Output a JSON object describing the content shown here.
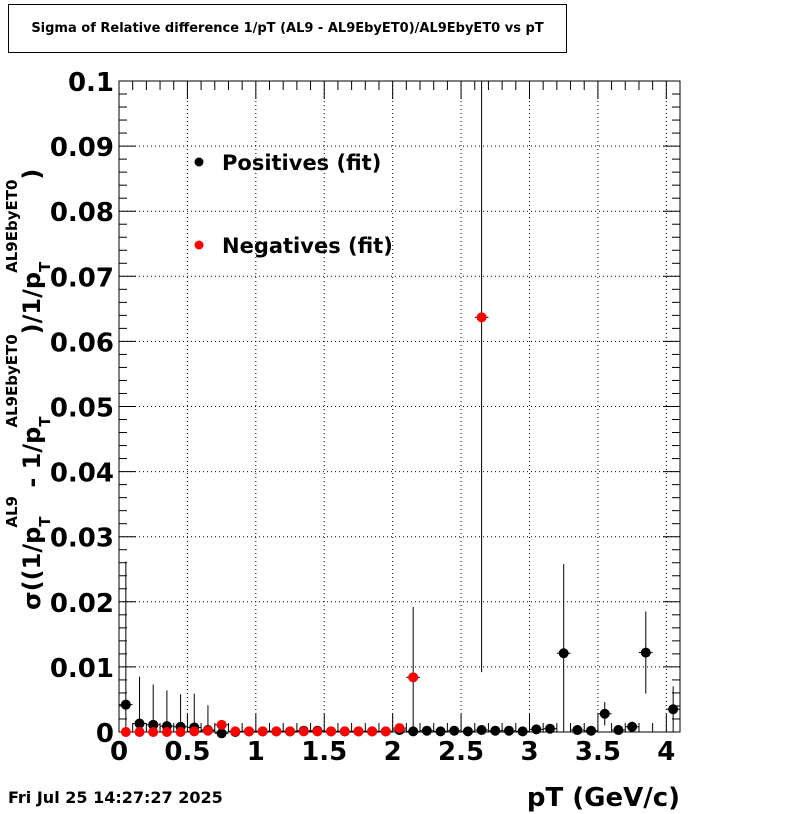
{
  "chart_data": {
    "type": "scatter",
    "title": "Sigma of Relative difference 1/pT (AL9 - AL9EbyET0)/AL9EbyET0 vs pT",
    "xlabel": "pT (GeV/c)",
    "ylabel": {
      "sigma": "σ((1/p",
      "t1": "T",
      "sup1": "AL9",
      "minus": " - 1/p",
      "t2": "T",
      "sup2": "AL9EbyET0",
      "div": ")/1/p",
      "t3": "T",
      "sup3": "AL9EbyET0",
      "close": ")"
    },
    "xlim": [
      0,
      4.1
    ],
    "ylim": [
      0,
      0.1
    ],
    "x_ticks": [
      {
        "v": 0,
        "label": "0"
      },
      {
        "v": 0.5,
        "label": "0.5"
      },
      {
        "v": 1,
        "label": "1"
      },
      {
        "v": 1.5,
        "label": "1.5"
      },
      {
        "v": 2,
        "label": "2"
      },
      {
        "v": 2.5,
        "label": "2.5"
      },
      {
        "v": 3,
        "label": "3"
      },
      {
        "v": 3.5,
        "label": "3.5"
      },
      {
        "v": 4,
        "label": "4"
      }
    ],
    "y_ticks": [
      {
        "v": 0,
        "label": "0"
      },
      {
        "v": 0.01,
        "label": "0.01"
      },
      {
        "v": 0.02,
        "label": "0.02"
      },
      {
        "v": 0.03,
        "label": "0.03"
      },
      {
        "v": 0.04,
        "label": "0.04"
      },
      {
        "v": 0.05,
        "label": "0.05"
      },
      {
        "v": 0.06,
        "label": "0.06"
      },
      {
        "v": 0.07,
        "label": "0.07"
      },
      {
        "v": 0.08,
        "label": "0.08"
      },
      {
        "v": 0.09,
        "label": "0.09"
      },
      {
        "v": 0.1,
        "label": "0.1"
      }
    ],
    "grid": true,
    "legend_placement": "top-left",
    "series": [
      {
        "name": "Positives (fit)",
        "color": "#000000",
        "points": [
          {
            "x": 0.05,
            "y": 0.0042,
            "err": 0.022
          },
          {
            "x": 0.15,
            "y": 0.0013,
            "err": 0.0072
          },
          {
            "x": 0.25,
            "y": 0.0011,
            "err": 0.0062
          },
          {
            "x": 0.35,
            "y": 0.0009,
            "err": 0.0055
          },
          {
            "x": 0.45,
            "y": 0.0008,
            "err": 0.005
          },
          {
            "x": 0.55,
            "y": 0.0007,
            "err": 0.0052
          },
          {
            "x": 0.65,
            "y": 0.0003,
            "err": 0.0038
          },
          {
            "x": 0.75,
            "y": -0.0002,
            "err": 0.0008
          },
          {
            "x": 0.85,
            "y": 0.0,
            "err": 0.0003
          },
          {
            "x": 0.95,
            "y": 0.0001,
            "err": 0.0003
          },
          {
            "x": 1.05,
            "y": 0.0001,
            "err": 0.0002
          },
          {
            "x": 1.15,
            "y": 0.0001,
            "err": 0.0002
          },
          {
            "x": 1.25,
            "y": 0.0001,
            "err": 0.0002
          },
          {
            "x": 1.35,
            "y": 0.0002,
            "err": 0.0002
          },
          {
            "x": 1.45,
            "y": 0.0002,
            "err": 0.0002
          },
          {
            "x": 1.55,
            "y": 0.0001,
            "err": 0.0002
          },
          {
            "x": 1.65,
            "y": 0.0001,
            "err": 0.0002
          },
          {
            "x": 1.75,
            "y": 0.0001,
            "err": 0.0002
          },
          {
            "x": 1.85,
            "y": 0.0001,
            "err": 0.0002
          },
          {
            "x": 1.95,
            "y": 0.0001,
            "err": 0.0002
          },
          {
            "x": 2.05,
            "y": 0.0003,
            "err": 0.0003
          },
          {
            "x": 2.15,
            "y": 0.0001,
            "err": 0.0003
          },
          {
            "x": 2.25,
            "y": 0.0002,
            "err": 0.0003
          },
          {
            "x": 2.35,
            "y": 0.0001,
            "err": 0.0003
          },
          {
            "x": 2.45,
            "y": 0.0002,
            "err": 0.0003
          },
          {
            "x": 2.55,
            "y": 0.0001,
            "err": 0.0003
          },
          {
            "x": 2.65,
            "y": 0.0003,
            "err": 0.0004
          },
          {
            "x": 2.75,
            "y": 0.0002,
            "err": 0.0003
          },
          {
            "x": 2.85,
            "y": 0.0002,
            "err": 0.0003
          },
          {
            "x": 2.95,
            "y": 0.0001,
            "err": 0.0003
          },
          {
            "x": 3.05,
            "y": 0.0004,
            "err": 0.0004
          },
          {
            "x": 3.15,
            "y": 0.0005,
            "err": 0.0004
          },
          {
            "x": 3.25,
            "y": 0.0121,
            "err": 0.0137
          },
          {
            "x": 3.35,
            "y": 0.0003,
            "err": 0.0004
          },
          {
            "x": 3.45,
            "y": 0.0002,
            "err": 0.0003
          },
          {
            "x": 3.55,
            "y": 0.0028,
            "err": 0.0018
          },
          {
            "x": 3.65,
            "y": 0.0003,
            "err": 0.0005
          },
          {
            "x": 3.75,
            "y": 0.0008,
            "err": 0.0008
          },
          {
            "x": 3.85,
            "y": 0.0122,
            "err": 0.0063
          },
          {
            "x": 4.05,
            "y": 0.0035,
            "err": 0.0035
          }
        ]
      },
      {
        "name": "Negatives (fit)",
        "color": "#ff0000",
        "points": [
          {
            "x": 0.05,
            "y": 0.0,
            "err": 0.0002
          },
          {
            "x": 0.15,
            "y": 0.0,
            "err": 0.0002
          },
          {
            "x": 0.25,
            "y": 0.0,
            "err": 0.0002
          },
          {
            "x": 0.35,
            "y": 0.0,
            "err": 0.0002
          },
          {
            "x": 0.45,
            "y": 0.0,
            "err": 0.0002
          },
          {
            "x": 0.55,
            "y": 0.0001,
            "err": 0.0002
          },
          {
            "x": 0.65,
            "y": 0.0002,
            "err": 0.0002
          },
          {
            "x": 0.75,
            "y": 0.0011,
            "err": 0.0005
          },
          {
            "x": 0.85,
            "y": 0.0001,
            "err": 0.0002
          },
          {
            "x": 0.95,
            "y": 0.0001,
            "err": 0.0002
          },
          {
            "x": 1.05,
            "y": 0.0001,
            "err": 0.0002
          },
          {
            "x": 1.15,
            "y": 0.0001,
            "err": 0.0002
          },
          {
            "x": 1.25,
            "y": 0.0001,
            "err": 0.0002
          },
          {
            "x": 1.35,
            "y": 0.0001,
            "err": 0.0002
          },
          {
            "x": 1.45,
            "y": 0.0001,
            "err": 0.0002
          },
          {
            "x": 1.55,
            "y": 0.0001,
            "err": 0.0002
          },
          {
            "x": 1.65,
            "y": 0.0001,
            "err": 0.0002
          },
          {
            "x": 1.75,
            "y": 0.0001,
            "err": 0.0002
          },
          {
            "x": 1.85,
            "y": 0.0001,
            "err": 0.0002
          },
          {
            "x": 1.95,
            "y": 0.0001,
            "err": 0.0002
          },
          {
            "x": 2.05,
            "y": 0.0006,
            "err": 0.0004
          },
          {
            "x": 2.15,
            "y": 0.0084,
            "err": 0.0108
          },
          {
            "x": 2.65,
            "y": 0.0637,
            "err": 0.0545
          }
        ]
      }
    ]
  },
  "timestamp": "Fri Jul 25 14:27:27 2025"
}
